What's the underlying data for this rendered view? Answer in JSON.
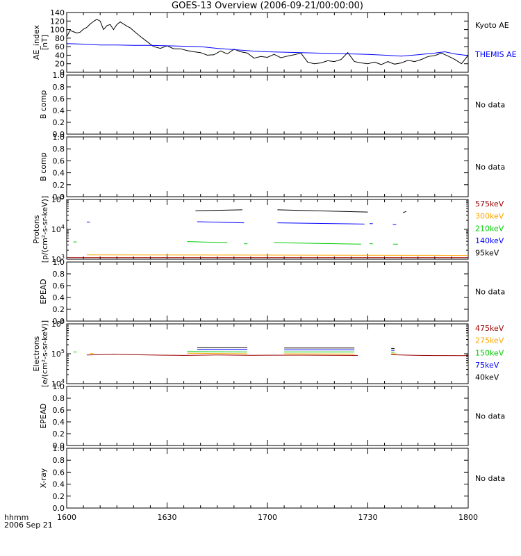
{
  "title": "GOES-13 Overview (2006-09-21/00:00:00)",
  "footer": {
    "line1": "hhmm",
    "line2": "2006 Sep 21"
  },
  "time_axis": {
    "ticks": [
      {
        "label": "1600",
        "min": 0
      },
      {
        "label": "1630",
        "min": 30
      },
      {
        "label": "1700",
        "min": 60
      },
      {
        "label": "1730",
        "min": 90
      },
      {
        "label": "1800",
        "min": 120
      }
    ]
  },
  "colors": {
    "black": "#000000",
    "blue": "#0000ff",
    "green": "#00cc00",
    "orange": "#ffa500",
    "darkred": "#990000"
  },
  "chart_data": [
    {
      "type": "line",
      "name": "ae",
      "ylabel": [
        "AE_index",
        "[nT]"
      ],
      "yticks": [
        "0",
        "20",
        "40",
        "60",
        "80",
        "100",
        "120",
        "140"
      ],
      "ylim": [
        0,
        140
      ],
      "legend": [
        {
          "label": "Kyoto AE",
          "color": "#000000"
        },
        {
          "label": "THEMIS AE",
          "color": "#0000ff"
        }
      ],
      "series": [
        {
          "name": "Kyoto AE",
          "color": "#000000",
          "x": [
            0,
            1,
            2,
            3,
            4,
            5,
            6,
            7,
            8,
            9,
            10,
            11,
            12,
            13,
            14,
            15,
            16,
            17,
            18,
            19,
            20,
            22,
            24,
            26,
            28,
            30,
            32,
            34,
            36,
            38,
            40,
            42,
            44,
            46,
            48,
            50,
            52,
            54,
            56,
            58,
            60,
            62,
            64,
            66,
            68,
            70,
            72,
            74,
            76,
            78,
            80,
            82,
            84,
            86,
            88,
            90,
            92,
            94,
            96,
            98,
            100,
            102,
            104,
            106,
            108,
            110,
            112,
            114,
            116,
            118,
            120
          ],
          "y": [
            83,
            98,
            95,
            92,
            94,
            101,
            105,
            113,
            119,
            124,
            120,
            100,
            109,
            112,
            100,
            112,
            118,
            113,
            108,
            104,
            97,
            84,
            72,
            60,
            56,
            62,
            55,
            55,
            51,
            48,
            46,
            40,
            41,
            50,
            43,
            54,
            48,
            45,
            33,
            37,
            35,
            42,
            34,
            38,
            41,
            45,
            24,
            20,
            22,
            27,
            25,
            30,
            46,
            25,
            22,
            20,
            24,
            18,
            25,
            19,
            22,
            28,
            25,
            30,
            37,
            39,
            45,
            38,
            30,
            20,
            40
          ]
        },
        {
          "name": "THEMIS AE",
          "color": "#0000ff",
          "x": [
            0,
            5,
            10,
            15,
            20,
            25,
            30,
            35,
            40,
            45,
            50,
            55,
            60,
            65,
            70,
            75,
            80,
            85,
            90,
            95,
            100,
            105,
            110,
            113,
            116,
            120
          ],
          "y": [
            67,
            66,
            64,
            64,
            63,
            63,
            62,
            61,
            60,
            56,
            53,
            50,
            48,
            47,
            46,
            45,
            44,
            43,
            42,
            40,
            38,
            41,
            45,
            48,
            43,
            39
          ]
        }
      ]
    },
    {
      "type": "line",
      "name": "bcomp1",
      "ylabel": [
        "B comp"
      ],
      "yticks": [
        "0.0",
        "0.2",
        "0.4",
        "0.6",
        "0.8",
        "1.0"
      ],
      "ylim": [
        0,
        1
      ],
      "note": "No data"
    },
    {
      "type": "line",
      "name": "bcomp2",
      "ylabel": [
        "B comp"
      ],
      "yticks": [
        "0.0",
        "0.2",
        "0.4",
        "0.6",
        "0.8",
        "1.0"
      ],
      "ylim": [
        0,
        1
      ],
      "note": "No data"
    },
    {
      "type": "line",
      "name": "protons",
      "scale": "log",
      "ylabel": [
        "Protons",
        "[p/(cm²-s-sr-keV)]"
      ],
      "yticks": [
        {
          "base": "10",
          "exp": "3",
          "value": 1000
        },
        {
          "base": "10",
          "exp": "4",
          "value": 10000
        },
        {
          "base": "10",
          "exp": "5",
          "value": 100000
        }
      ],
      "ylim": [
        1000,
        100000
      ],
      "legend": [
        {
          "label": "575keV",
          "color": "#990000"
        },
        {
          "label": "300keV",
          "color": "#ffa500"
        },
        {
          "label": "210keV",
          "color": "#00cc00"
        },
        {
          "label": "140keV",
          "color": "#0000ff"
        },
        {
          "label": "95keV",
          "color": "#000000"
        }
      ],
      "series": [
        {
          "name": "95keV",
          "color": "#000000",
          "segments": [
            {
              "x": [
                38.5,
                52.5
              ],
              "y": [
                42000,
                45000
              ]
            },
            {
              "x": [
                63,
                90
              ],
              "y": [
                45000,
                38000
              ]
            },
            {
              "x": [
                100.5,
                101.5
              ],
              "y": [
                36000,
                40000
              ]
            }
          ]
        },
        {
          "name": "140keV",
          "color": "#0000ff",
          "segments": [
            {
              "x": [
                6,
                7
              ],
              "y": [
                17500,
                17500
              ]
            },
            {
              "x": [
                39,
                53
              ],
              "y": [
                18000,
                16500
              ]
            },
            {
              "x": [
                63,
                89
              ],
              "y": [
                16500,
                15000
              ]
            },
            {
              "x": [
                90.5,
                91.5
              ],
              "y": [
                15500,
                15500
              ]
            },
            {
              "x": [
                97.5,
                98.5
              ],
              "y": [
                14500,
                14500
              ]
            }
          ]
        },
        {
          "name": "210keV",
          "color": "#00cc00",
          "segments": [
            {
              "x": [
                2,
                3
              ],
              "y": [
                3800,
                3800
              ]
            },
            {
              "x": [
                36,
                48
              ],
              "y": [
                3900,
                3600
              ]
            },
            {
              "x": [
                53,
                54
              ],
              "y": [
                3300,
                3300
              ]
            },
            {
              "x": [
                62,
                88
              ],
              "y": [
                3600,
                3200
              ]
            },
            {
              "x": [
                90.5,
                91.5
              ],
              "y": [
                3300,
                3300
              ]
            },
            {
              "x": [
                97.5,
                99
              ],
              "y": [
                3200,
                3200
              ]
            }
          ]
        },
        {
          "name": "300keV",
          "color": "#ffa500",
          "segments": [
            {
              "x": [
                6,
                120
              ],
              "y": [
                1400,
                1350
              ]
            }
          ]
        },
        {
          "name": "575keV",
          "color": "#990000",
          "segments": [
            {
              "x": [
                0,
                120
              ],
              "y": [
                1130,
                1130
              ]
            }
          ]
        }
      ]
    },
    {
      "type": "line",
      "name": "epead1",
      "ylabel": [
        "EPEAD"
      ],
      "yticks": [
        "0.0",
        "0.2",
        "0.4",
        "0.6",
        "0.8",
        "1.0"
      ],
      "ylim": [
        0,
        1
      ],
      "note": "No data"
    },
    {
      "type": "line",
      "name": "electrons",
      "scale": "log",
      "ylabel": [
        "Electrons",
        "[e/(cm²-s-sr-keV)]"
      ],
      "yticks": [
        {
          "base": "10",
          "exp": "4",
          "value": 10000
        },
        {
          "base": "10",
          "exp": "5",
          "value": 100000
        },
        {
          "base": "10",
          "exp": "6",
          "value": 1000000
        }
      ],
      "ylim": [
        10000,
        1000000
      ],
      "legend": [
        {
          "label": "475keV",
          "color": "#990000"
        },
        {
          "label": "275keV",
          "color": "#ffa500"
        },
        {
          "label": "150keV",
          "color": "#00cc00"
        },
        {
          "label": "75keV",
          "color": "#0000ff"
        },
        {
          "label": "40keV",
          "color": "#000000"
        }
      ],
      "series": [
        {
          "name": "40keV",
          "color": "#000000",
          "segments": [
            {
              "x": [
                39,
                54
              ],
              "y": [
                160000,
                160000
              ]
            },
            {
              "x": [
                65,
                86
              ],
              "y": [
                155000,
                155000
              ]
            },
            {
              "x": [
                97,
                98
              ],
              "y": [
                150000,
                150000
              ]
            }
          ]
        },
        {
          "name": "75keV",
          "color": "#0000ff",
          "segments": [
            {
              "x": [
                39,
                54
              ],
              "y": [
                140000,
                140000
              ]
            },
            {
              "x": [
                65,
                86
              ],
              "y": [
                135000,
                135000
              ]
            },
            {
              "x": [
                97,
                98
              ],
              "y": [
                130000,
                130000
              ]
            }
          ]
        },
        {
          "name": "150keV",
          "color": "#00cc00",
          "segments": [
            {
              "x": [
                2,
                3
              ],
              "y": [
                115000,
                115000
              ]
            },
            {
              "x": [
                36,
                54
              ],
              "y": [
                118000,
                115000
              ]
            },
            {
              "x": [
                65,
                86
              ],
              "y": [
                115000,
                115000
              ]
            },
            {
              "x": [
                97,
                98
              ],
              "y": [
                112000,
                112000
              ]
            }
          ]
        },
        {
          "name": "275keV",
          "color": "#ffa500",
          "segments": [
            {
              "x": [
                7,
                8
              ],
              "y": [
                102000,
                102000
              ]
            },
            {
              "x": [
                36,
                54
              ],
              "y": [
                104000,
                100000
              ]
            },
            {
              "x": [
                65,
                86
              ],
              "y": [
                100000,
                98000
              ]
            },
            {
              "x": [
                97,
                98.5
              ],
              "y": [
                100000,
                100000
              ]
            }
          ]
        },
        {
          "name": "475keV",
          "color": "#990000",
          "segments": [
            {
              "x": [
                6,
                14,
                20,
                28,
                35,
                45,
                55,
                70,
                87
              ],
              "y": [
                91000,
                96000,
                93000,
                90000,
                88000,
                91000,
                89000,
                90000,
                88000
              ]
            },
            {
              "x": [
                97,
                104,
                110,
                120
              ],
              "y": [
                93000,
                89000,
                87000,
                86000
              ]
            }
          ]
        }
      ]
    },
    {
      "type": "line",
      "name": "epead2",
      "ylabel": [
        "EPEAD"
      ],
      "yticks": [
        "0.0",
        "0.2",
        "0.4",
        "0.6",
        "0.8",
        "1.0"
      ],
      "ylim": [
        0,
        1
      ],
      "note": "No data"
    },
    {
      "type": "line",
      "name": "xray",
      "ylabel": [
        "X-ray"
      ],
      "yticks": [
        "0.0",
        "0.2",
        "0.4",
        "0.6",
        "0.8",
        "1.0"
      ],
      "ylim": [
        0,
        1
      ],
      "note": "No data"
    }
  ]
}
